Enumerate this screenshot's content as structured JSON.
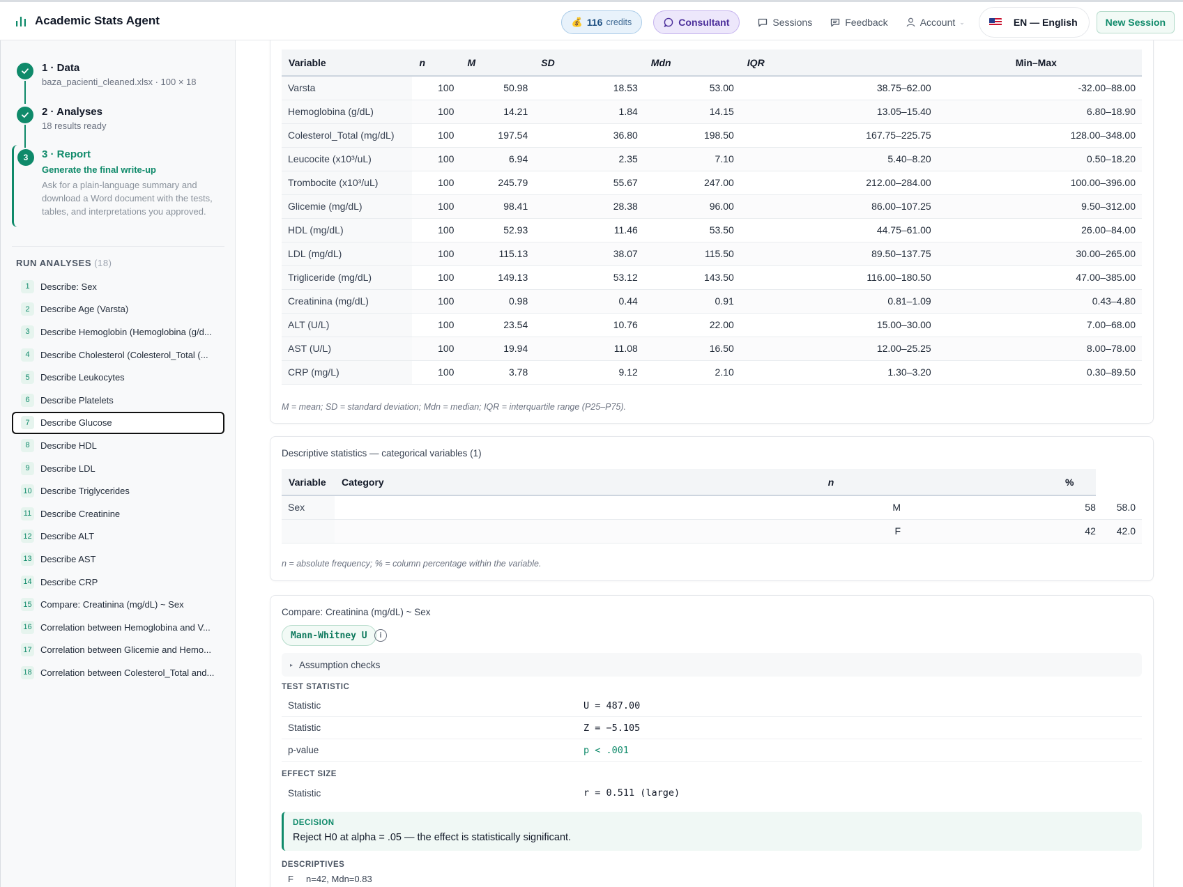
{
  "header": {
    "app_title": "Academic Stats Agent",
    "credits_value": "116",
    "credits_label": "credits",
    "consultant_label": "Consultant",
    "sessions_label": "Sessions",
    "feedback_label": "Feedback",
    "account_label": "Account",
    "language_label": "EN — English",
    "new_session_label": "New Session"
  },
  "sidebar": {
    "steps": [
      {
        "num": "1",
        "title": "1 · Data",
        "subtitle": "baza_pacienti_cleaned.xlsx · 100 × 18",
        "status": "complete"
      },
      {
        "num": "2",
        "title": "2 · Analyses",
        "subtitle": "18 results ready",
        "status": "complete"
      },
      {
        "num": "3",
        "title": "3 · Report",
        "cta": "Generate the final write-up",
        "description": "Ask for a plain-language summary and download a Word document with the tests, tables, and interpretations you approved.",
        "status": "current"
      }
    ],
    "run_header": "RUN ANALYSES",
    "run_count": "(18)",
    "run_items": [
      {
        "num": "1",
        "label": "Describe: Sex"
      },
      {
        "num": "2",
        "label": "Describe Age (Varsta)"
      },
      {
        "num": "3",
        "label": "Describe Hemoglobin (Hemoglobina (g/d..."
      },
      {
        "num": "4",
        "label": "Describe Cholesterol (Colesterol_Total (..."
      },
      {
        "num": "5",
        "label": "Describe Leukocytes"
      },
      {
        "num": "6",
        "label": "Describe Platelets"
      },
      {
        "num": "7",
        "label": "Describe Glucose"
      },
      {
        "num": "8",
        "label": "Describe HDL"
      },
      {
        "num": "9",
        "label": "Describe LDL"
      },
      {
        "num": "10",
        "label": "Describe Triglycerides"
      },
      {
        "num": "11",
        "label": "Describe Creatinine"
      },
      {
        "num": "12",
        "label": "Describe ALT"
      },
      {
        "num": "13",
        "label": "Describe AST"
      },
      {
        "num": "14",
        "label": "Describe CRP"
      },
      {
        "num": "15",
        "label": "Compare: Creatinina (mg/dL) ~ Sex"
      },
      {
        "num": "16",
        "label": "Correlation between Hemoglobina and V..."
      },
      {
        "num": "17",
        "label": "Correlation between Glicemie and Hemo..."
      },
      {
        "num": "18",
        "label": "Correlation between Colesterol_Total and..."
      }
    ],
    "active_item": 7
  },
  "continuous_table": {
    "headers": [
      "Variable",
      "n",
      "M",
      "SD",
      "Mdn",
      "IQR",
      "Min–Max"
    ],
    "rows": [
      [
        "Varsta",
        "100",
        "50.98",
        "18.53",
        "53.00",
        "38.75–62.00",
        "-32.00–88.00"
      ],
      [
        "Hemoglobina (g/dL)",
        "100",
        "14.21",
        "1.84",
        "14.15",
        "13.05–15.40",
        "6.80–18.90"
      ],
      [
        "Colesterol_Total (mg/dL)",
        "100",
        "197.54",
        "36.80",
        "198.50",
        "167.75–225.75",
        "128.00–348.00"
      ],
      [
        "Leucocite (x10³/uL)",
        "100",
        "6.94",
        "2.35",
        "7.10",
        "5.40–8.20",
        "0.50–18.20"
      ],
      [
        "Trombocite (x10³/uL)",
        "100",
        "245.79",
        "55.67",
        "247.00",
        "212.00–284.00",
        "100.00–396.00"
      ],
      [
        "Glicemie (mg/dL)",
        "100",
        "98.41",
        "28.38",
        "96.00",
        "86.00–107.25",
        "9.50–312.00"
      ],
      [
        "HDL (mg/dL)",
        "100",
        "52.93",
        "11.46",
        "53.50",
        "44.75–61.00",
        "26.00–84.00"
      ],
      [
        "LDL (mg/dL)",
        "100",
        "115.13",
        "38.07",
        "115.50",
        "89.50–137.75",
        "30.00–265.00"
      ],
      [
        "Trigliceride (mg/dL)",
        "100",
        "149.13",
        "53.12",
        "143.50",
        "116.00–180.50",
        "47.00–385.00"
      ],
      [
        "Creatinina (mg/dL)",
        "100",
        "0.98",
        "0.44",
        "0.91",
        "0.81–1.09",
        "0.43–4.80"
      ],
      [
        "ALT (U/L)",
        "100",
        "23.54",
        "10.76",
        "22.00",
        "15.00–30.00",
        "7.00–68.00"
      ],
      [
        "AST (U/L)",
        "100",
        "19.94",
        "11.08",
        "16.50",
        "12.00–25.25",
        "8.00–78.00"
      ],
      [
        "CRP (mg/L)",
        "100",
        "3.78",
        "9.12",
        "2.10",
        "1.30–3.20",
        "0.30–89.50"
      ]
    ],
    "note": "M = mean; SD = standard deviation; Mdn = median; IQR = interquartile range (P25–P75)."
  },
  "categorical_card": {
    "title": "Descriptive statistics — categorical variables (1)",
    "headers": [
      "Variable",
      "Category",
      "n",
      "%"
    ],
    "rows": [
      [
        "Sex",
        "M",
        "58",
        "58.0"
      ],
      [
        "",
        "F",
        "42",
        "42.0"
      ]
    ],
    "note": "n = absolute frequency; % = column percentage within the variable."
  },
  "compare_card": {
    "title": "Compare: Creatinina (mg/dL) ~ Sex",
    "test_name": "Mann-Whitney U",
    "info_glyph": "i",
    "assumption_label": "Assumption checks",
    "test_statistic_header": "TEST STATISTIC",
    "stats": [
      {
        "label": "Statistic",
        "value": "U = 487.00"
      },
      {
        "label": "Statistic",
        "value": "Z = −5.105"
      },
      {
        "label": "p-value",
        "value": "p < .001"
      }
    ],
    "effect_size_header": "EFFECT SIZE",
    "effect": {
      "label": "Statistic",
      "value": "r = 0.511 (large)"
    },
    "decision_header": "DECISION",
    "decision_text": "Reject H0 at alpha = .05 — the effect is statistically significant.",
    "descriptives_header": "DESCRIPTIVES",
    "descriptives": [
      {
        "group": "F",
        "value": "n=42, Mdn=0.83"
      }
    ]
  },
  "colors": {
    "accent": "#0f8a6a",
    "credits": "#1d4f82",
    "consultant": "#4c2f9b"
  }
}
